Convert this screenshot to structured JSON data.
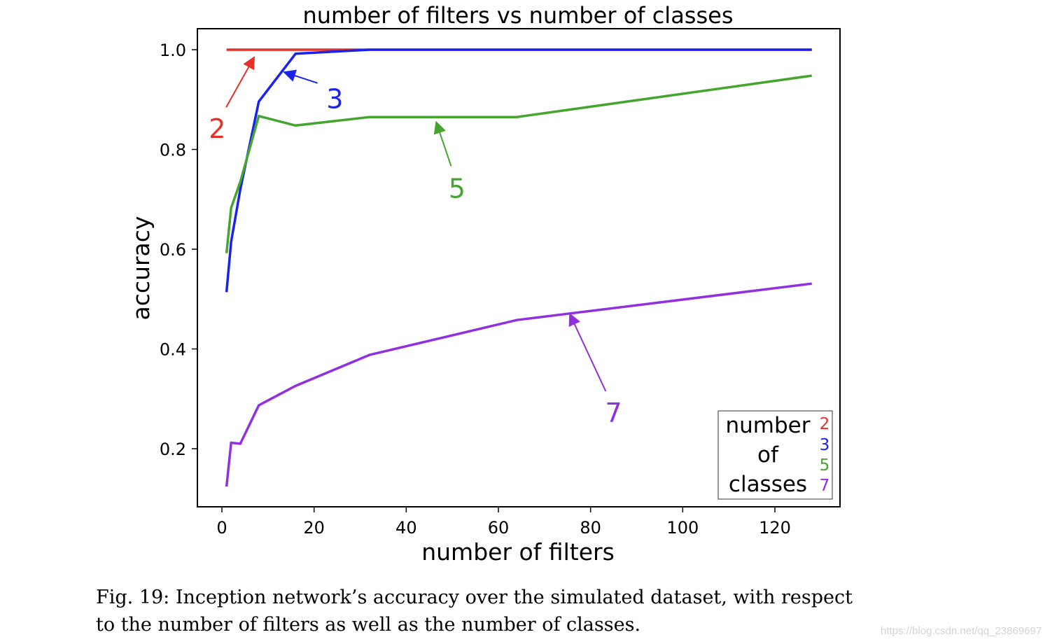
{
  "chart_data": {
    "type": "line",
    "title": "number of filters vs number of classes",
    "xlabel": "number of filters",
    "ylabel": "accuracy",
    "xlim": [
      -5,
      135
    ],
    "ylim": [
      0.08,
      1.044
    ],
    "xticks": [
      0,
      20,
      40,
      60,
      80,
      100,
      120
    ],
    "yticks": [
      0.2,
      0.4,
      0.6,
      0.8,
      1.0
    ],
    "xtick_labels": [
      "0",
      "20",
      "40",
      "60",
      "80",
      "100",
      "120"
    ],
    "ytick_labels": [
      "0.2",
      "0.4",
      "0.6",
      "0.8",
      "1.0"
    ],
    "grid": false,
    "x": [
      1,
      2,
      4,
      8,
      16,
      32,
      64,
      128
    ],
    "series": [
      {
        "name": "2",
        "color": "#e8302a",
        "values": [
          1.0,
          1.0,
          1.0,
          1.0,
          1.0,
          1.0,
          1.0,
          1.0
        ]
      },
      {
        "name": "3",
        "color": "#1a23ee",
        "values": [
          0.514,
          0.615,
          0.72,
          0.896,
          0.992,
          1.0,
          1.0,
          1.0
        ]
      },
      {
        "name": "5",
        "color": "#45a52f",
        "values": [
          0.592,
          0.683,
          0.735,
          0.867,
          0.848,
          0.865,
          0.865,
          0.948
        ]
      },
      {
        "name": "7",
        "color": "#9030de",
        "values": [
          0.124,
          0.212,
          0.21,
          0.287,
          0.326,
          0.388,
          0.458,
          0.531
        ]
      }
    ],
    "annotations": [
      {
        "text": "2",
        "color": "#e8302a",
        "text_xy": [
          -1,
          0.84
        ],
        "arrow_to": [
          7,
          0.985
        ]
      },
      {
        "text": "3",
        "color": "#1a23ee",
        "text_xy": [
          24.5,
          0.9
        ],
        "arrow_to": [
          13.5,
          0.955
        ]
      },
      {
        "text": "5",
        "color": "#45a52f",
        "text_xy": [
          51,
          0.72
        ],
        "arrow_to": [
          46.5,
          0.855
        ]
      },
      {
        "text": "7",
        "color": "#9030de",
        "text_xy": [
          85,
          0.27
        ],
        "arrow_to": [
          75.5,
          0.47
        ]
      }
    ],
    "legend": {
      "position": "lower right",
      "title_lines": [
        "number",
        "of",
        "classes"
      ],
      "entries": [
        "2",
        "3",
        "5",
        "7"
      ]
    }
  },
  "caption": {
    "line1": "Fig. 19: Inception network’s accuracy over the simulated dataset, with respect",
    "line2": "to the number of filters as well as the number of classes."
  },
  "watermark": "https://blog.csdn.net/qq_23869697"
}
